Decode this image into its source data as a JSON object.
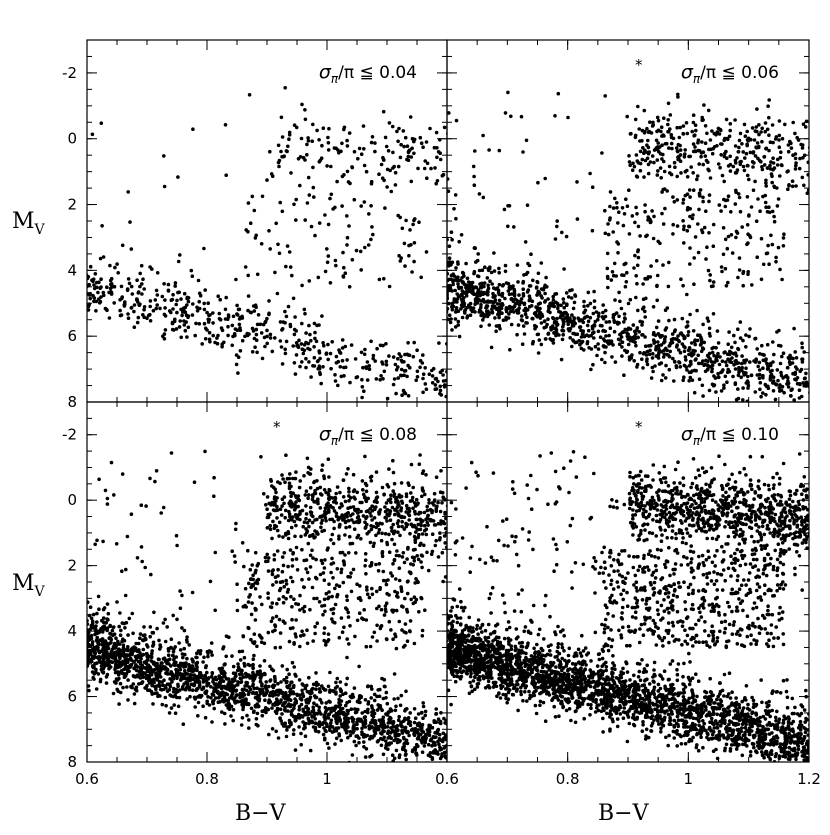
{
  "figure": {
    "xlabel": "B−V",
    "ylabel_main": "M",
    "ylabel_sub": "V"
  },
  "chart_data": [
    {
      "type": "scatter",
      "panel_label_main": "σ",
      "panel_label_sub": "π",
      "panel_label_rest": "/π  ≦  0.04",
      "starred": false,
      "n_points": 900,
      "seed": 11,
      "xlim": [
        0.6,
        1.2
      ],
      "ylim": [
        8,
        -3
      ],
      "xticks": [
        0.6,
        0.8,
        1.0,
        1.2
      ],
      "xtick_labels": [],
      "yticks": [
        -2,
        0,
        2,
        4,
        6,
        8
      ],
      "ytick_labels": [
        "-2",
        "0",
        "2",
        "4",
        "6",
        "8"
      ],
      "main_sequence": {
        "x": [
          0.6,
          1.2
        ],
        "y": [
          4.6,
          7.5
        ]
      },
      "giant_clump": {
        "x": [
          0.9,
          1.2
        ],
        "y": [
          -0.5,
          1.5
        ]
      }
    },
    {
      "type": "scatter",
      "panel_label_main": "σ",
      "panel_label_sub": "π",
      "panel_label_rest": "/π  ≦  0.06",
      "starred": true,
      "n_points": 2100,
      "seed": 23,
      "xlim": [
        0.6,
        1.2
      ],
      "ylim": [
        8,
        -3
      ],
      "xticks": [
        0.6,
        0.8,
        1.0,
        1.2
      ],
      "xtick_labels": [],
      "yticks": [
        -2,
        0,
        2,
        4,
        6,
        8
      ],
      "ytick_labels": [],
      "main_sequence": {
        "x": [
          0.6,
          1.2
        ],
        "y": [
          4.6,
          7.5
        ]
      },
      "giant_clump": {
        "x": [
          0.9,
          1.2
        ],
        "y": [
          -0.5,
          1.5
        ]
      }
    },
    {
      "type": "scatter",
      "panel_label_main": "σ",
      "panel_label_sub": "π",
      "panel_label_rest": "/π  ≦  0.08",
      "starred": true,
      "n_points": 3400,
      "seed": 37,
      "xlim": [
        0.6,
        1.2
      ],
      "ylim": [
        8,
        -3
      ],
      "xticks": [
        0.6,
        0.8,
        1.0,
        1.2
      ],
      "xtick_labels": [
        "0.6",
        "0.8",
        "1",
        ""
      ],
      "yticks": [
        -2,
        0,
        2,
        4,
        6,
        8
      ],
      "ytick_labels": [
        "-2",
        "0",
        "2",
        "4",
        "6",
        "8"
      ],
      "main_sequence": {
        "x": [
          0.6,
          1.2
        ],
        "y": [
          4.6,
          7.5
        ]
      },
      "giant_clump": {
        "x": [
          0.9,
          1.2
        ],
        "y": [
          -0.5,
          1.5
        ]
      }
    },
    {
      "type": "scatter",
      "panel_label_main": "σ",
      "panel_label_sub": "π",
      "panel_label_rest": "/π  ≦  0.10",
      "starred": true,
      "n_points": 4600,
      "seed": 53,
      "xlim": [
        0.6,
        1.2
      ],
      "ylim": [
        8,
        -3
      ],
      "xticks": [
        0.6,
        0.8,
        1.0,
        1.2
      ],
      "xtick_labels": [
        "0.6",
        "0.8",
        "1",
        "1.2"
      ],
      "yticks": [
        -2,
        0,
        2,
        4,
        6,
        8
      ],
      "ytick_labels": [],
      "main_sequence": {
        "x": [
          0.6,
          1.2
        ],
        "y": [
          4.6,
          7.5
        ]
      },
      "giant_clump": {
        "x": [
          0.9,
          1.2
        ],
        "y": [
          -0.5,
          1.5
        ]
      }
    }
  ]
}
